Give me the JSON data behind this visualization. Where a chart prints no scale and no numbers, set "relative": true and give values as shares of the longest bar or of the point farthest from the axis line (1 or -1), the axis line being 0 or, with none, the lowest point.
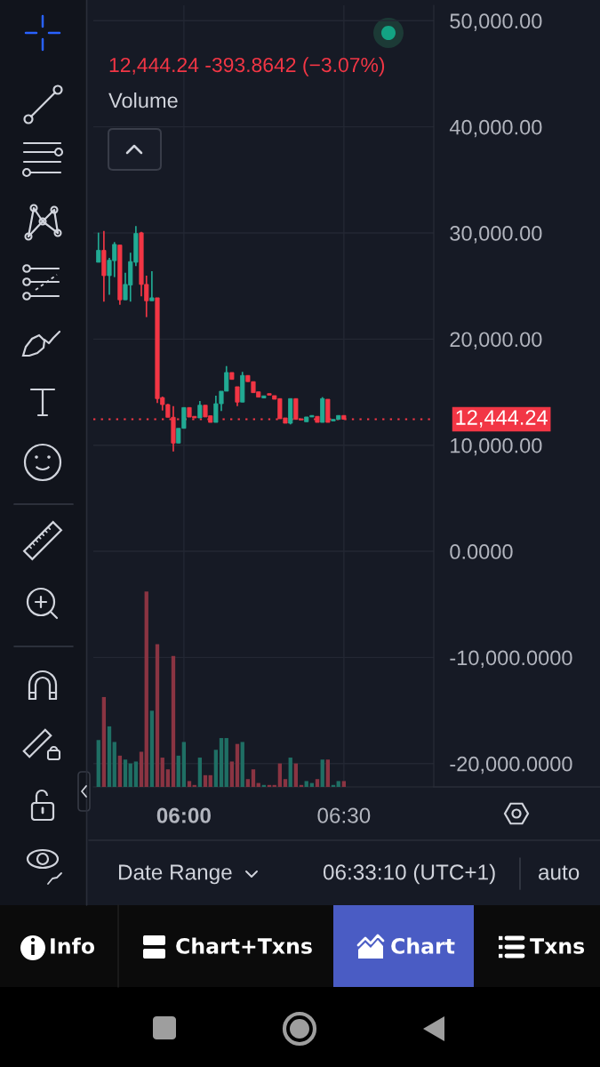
{
  "chart_data": [
    {
      "type": "candlestick",
      "subtitle": "12,444.24 -393.8642 (−3.07%)",
      "x": [
        5.733,
        5.75,
        5.767,
        5.783,
        5.8,
        5.817,
        5.833,
        5.85,
        5.867,
        5.883,
        5.9,
        5.917,
        5.933,
        5.95,
        5.967,
        5.983,
        6,
        6.017,
        6.033,
        6.05,
        6.067,
        6.083,
        6.1,
        6.117,
        6.133,
        6.15,
        6.167,
        6.183,
        6.2,
        6.217,
        6.233,
        6.25,
        6.267,
        6.283,
        6.3,
        6.317,
        6.333,
        6.35,
        6.367,
        6.383,
        6.4,
        6.417,
        6.433,
        6.45,
        6.467,
        6.483,
        6.5
      ],
      "ohlc": [
        [
          27240,
          30030,
          27240,
          28360
        ],
        [
          28360,
          30180,
          23530,
          25980
        ],
        [
          25980,
          27660,
          24170,
          27430
        ],
        [
          27390,
          29140,
          25840,
          28920
        ],
        [
          28860,
          28860,
          23240,
          23700
        ],
        [
          23700,
          26260,
          23700,
          25150
        ],
        [
          25090,
          28140,
          23530,
          27300
        ],
        [
          27240,
          30650,
          26880,
          29950
        ],
        [
          30010,
          30100,
          24030,
          25150
        ],
        [
          25150,
          25980,
          22070,
          23610
        ],
        [
          23610,
          26400,
          23610,
          23890
        ],
        [
          23890,
          23890,
          13970,
          14390
        ],
        [
          14480,
          14580,
          13270,
          13830
        ],
        [
          13830,
          13900,
          12630,
          12630
        ],
        [
          12630,
          13690,
          9410,
          10200
        ],
        [
          10200,
          11590,
          10200,
          11590
        ],
        [
          11590,
          13550,
          11590,
          13550
        ],
        [
          13550,
          13550,
          12650,
          12650
        ],
        [
          12720,
          12720,
          12570,
          12570
        ],
        [
          12570,
          14170,
          12570,
          13770
        ],
        [
          13770,
          13770,
          12660,
          12660
        ],
        [
          12770,
          12770,
          12150,
          12150
        ],
        [
          12150,
          14670,
          12150,
          13910
        ],
        [
          13910,
          15090,
          13220,
          15090
        ],
        [
          15090,
          17460,
          15090,
          16850
        ],
        [
          16850,
          16850,
          16200,
          16200
        ],
        [
          15510,
          15510,
          13690,
          14060
        ],
        [
          14060,
          16910,
          14060,
          16570
        ],
        [
          16570,
          16570,
          15990,
          15990
        ],
        [
          15990,
          15990,
          14950,
          14950
        ],
        [
          15030,
          15030,
          14530,
          14530
        ],
        [
          14450,
          14650,
          14450,
          14650
        ],
        [
          14860,
          14860,
          14720,
          14720
        ],
        [
          14670,
          14670,
          14330,
          14330
        ],
        [
          14390,
          14390,
          12490,
          12490
        ],
        [
          12570,
          12570,
          12070,
          12070
        ],
        [
          12070,
          14390,
          11960,
          14390
        ],
        [
          14390,
          14390,
          12430,
          12430
        ],
        [
          12490,
          12490,
          12380,
          12380
        ],
        [
          12210,
          12660,
          12210,
          12660
        ],
        [
          12660,
          12800,
          12660,
          12800
        ],
        [
          12720,
          12720,
          12150,
          12150
        ],
        [
          12150,
          14530,
          12150,
          14390
        ],
        [
          14330,
          14330,
          12150,
          12150
        ],
        [
          12290,
          12430,
          12290,
          12430
        ],
        [
          12430,
          12800,
          12430,
          12800
        ],
        [
          12800,
          12800,
          12444,
          12444
        ]
      ],
      "colors": [
        "#22ab94",
        "#f23645",
        "#22ab94",
        "#22ab94",
        "#f23645",
        "#22ab94",
        "#22ab94",
        "#22ab94",
        "#f23645",
        "#f23645",
        "#22ab94",
        "#f23645",
        "#f23645",
        "#f23645",
        "#f23645",
        "#22ab94",
        "#22ab94",
        "#f23645",
        "#f23645",
        "#22ab94",
        "#f23645",
        "#f23645",
        "#22ab94",
        "#22ab94",
        "#22ab94",
        "#f23645",
        "#f23645",
        "#22ab94",
        "#f23645",
        "#f23645",
        "#f23645",
        "#22ab94",
        "#f23645",
        "#f23645",
        "#f23645",
        "#f23645",
        "#22ab94",
        "#f23645",
        "#f23645",
        "#22ab94",
        "#22ab94",
        "#f23645",
        "#22ab94",
        "#f23645",
        "#22ab94",
        "#22ab94",
        "#f23645"
      ],
      "xlim": [
        5.717,
        6.781
      ],
      "xticks": [
        {
          "value": 6,
          "label": "06:00"
        },
        {
          "value": 6.5,
          "label": "06:30"
        }
      ],
      "ylim": [
        -22200,
        51450
      ],
      "yticks": [
        {
          "value": -20000,
          "label": "-20,000.0000"
        },
        {
          "value": -10000,
          "label": "-10,000.0000"
        },
        {
          "value": 0,
          "label": "0.0000"
        },
        {
          "value": 10000,
          "label": "10,000.00"
        },
        {
          "value": 20000,
          "label": "20,000.00"
        },
        {
          "value": 30000,
          "label": "30,000.00"
        },
        {
          "value": 40000,
          "label": "40,000.00"
        },
        {
          "value": 50000,
          "label": "50,000.00"
        }
      ],
      "grid": true,
      "ref_lines": [
        {
          "axis": "y",
          "value": 12444.24,
          "label": "12,444.24",
          "color": "#f23645",
          "line_style": "dotted"
        }
      ],
      "annotations": [
        "Date Range",
        "06:33:10 (UTC+1)",
        "auto",
        "Info",
        "Chart+Txns",
        "Chart",
        "Txns"
      ]
    },
    {
      "type": "bar",
      "title": "Volume",
      "relative": true,
      "x": [
        5.733,
        5.75,
        5.767,
        5.783,
        5.8,
        5.817,
        5.833,
        5.85,
        5.867,
        5.883,
        5.9,
        5.917,
        5.933,
        5.95,
        5.967,
        5.983,
        6,
        6.017,
        6.033,
        6.05,
        6.067,
        6.083,
        6.1,
        6.117,
        6.133,
        6.15,
        6.167,
        6.183,
        6.2,
        6.217,
        6.233,
        6.25,
        6.267,
        6.283,
        6.3,
        6.317,
        6.333,
        6.35,
        6.367,
        6.383,
        6.4,
        6.417,
        6.433,
        6.45,
        6.467,
        6.483,
        6.5
      ],
      "values": [
        0.24,
        0.46,
        0.31,
        0.23,
        0.16,
        0.14,
        0.12,
        0.13,
        0.18,
        1,
        0.39,
        0.73,
        0.15,
        0.09,
        0.67,
        0.16,
        0.23,
        0.03,
        0.01,
        0.15,
        0.06,
        0.06,
        0.19,
        0.25,
        0.25,
        0.13,
        0.22,
        0.23,
        0.04,
        0.09,
        0.02,
        0.01,
        0.01,
        0.01,
        0.12,
        0.04,
        0.15,
        0.12,
        0.01,
        0.03,
        0.02,
        0.04,
        0.14,
        0.14,
        0.01,
        0.03,
        0.03
      ],
      "colors": [
        "#1f6f64",
        "#8a3442",
        "#1f6f64",
        "#1f6f64",
        "#8a3442",
        "#1f6f64",
        "#1f6f64",
        "#1f6f64",
        "#8a3442",
        "#8a3442",
        "#1f6f64",
        "#8a3442",
        "#8a3442",
        "#8a3442",
        "#8a3442",
        "#1f6f64",
        "#1f6f64",
        "#8a3442",
        "#8a3442",
        "#1f6f64",
        "#8a3442",
        "#8a3442",
        "#1f6f64",
        "#1f6f64",
        "#1f6f64",
        "#8a3442",
        "#8a3442",
        "#1f6f64",
        "#8a3442",
        "#8a3442",
        "#8a3442",
        "#1f6f64",
        "#8a3442",
        "#8a3442",
        "#8a3442",
        "#8a3442",
        "#1f6f64",
        "#8a3442",
        "#8a3442",
        "#1f6f64",
        "#1f6f64",
        "#8a3442",
        "#1f6f64",
        "#8a3442",
        "#1f6f64",
        "#1f6f64",
        "#8a3442"
      ],
      "xlim": [
        5.717,
        6.781
      ]
    }
  ]
}
